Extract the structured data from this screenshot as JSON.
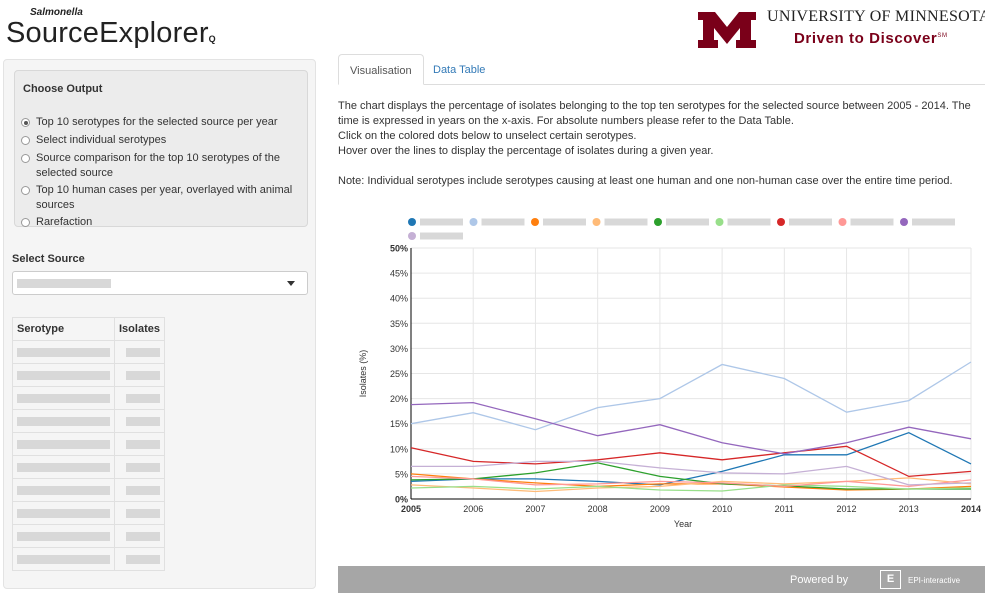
{
  "brand": {
    "small": "Salmonella",
    "big": "SourceExplorer",
    "suffix": "Q"
  },
  "university": {
    "name": "UNIVERSITY OF MINNESOTA",
    "tagline": "Driven to Discover",
    "tm": "SM",
    "logo_color": "#7a0019"
  },
  "sidebar": {
    "output_title": "Choose Output",
    "options": [
      {
        "label": "Top 10 serotypes for the selected source per year",
        "selected": true
      },
      {
        "label": "Select individual serotypes",
        "selected": false
      },
      {
        "label": "Source comparison for the top 10 serotypes of the selected source",
        "selected": false
      },
      {
        "label": "Top 10 human cases per year, overlayed with animal sources",
        "selected": false
      },
      {
        "label": "Rarefaction",
        "selected": false
      }
    ],
    "source_label": "Select Source",
    "table": {
      "headers": [
        "Serotype",
        "Isolates"
      ],
      "row_count": 10
    }
  },
  "tabs": [
    {
      "label": "Visualisation",
      "active": true
    },
    {
      "label": "Data Table",
      "active": false
    }
  ],
  "description": {
    "p1": "The chart displays the percentage of isolates belonging to the top ten serotypes for the selected source between 2005 - 2014. The time is expressed in years on the x-axis. For absolute numbers please refer to the Data Table.",
    "p2": "Click on the colored dots below to unselect certain serotypes.",
    "p3": "Hover over the lines to display the percentage of isolates during a given year.",
    "note": "Note: Individual serotypes include serotypes causing at least one human and one non-human case over the entire time period."
  },
  "chart_data": {
    "type": "line",
    "xlabel": "Year",
    "ylabel": "Isolates (%)",
    "ylim": [
      0,
      50
    ],
    "y_ticks": [
      "0%",
      "5%",
      "10%",
      "15%",
      "20%",
      "25%",
      "30%",
      "35%",
      "40%",
      "45%",
      "50%"
    ],
    "x": [
      "2005",
      "2006",
      "2007",
      "2008",
      "2009",
      "2010",
      "2011",
      "2012",
      "2013",
      "2014"
    ],
    "grid": true,
    "legend_position": "top",
    "series": [
      {
        "color": "#1f77b4",
        "values": [
          3.5,
          4.0,
          4.0,
          3.5,
          2.8,
          5.5,
          8.8,
          8.8,
          13.2,
          7.0
        ]
      },
      {
        "color": "#aec7e8",
        "values": [
          15.0,
          17.2,
          13.8,
          18.2,
          20.0,
          26.8,
          24.0,
          17.3,
          19.6,
          27.3
        ]
      },
      {
        "color": "#ff7f0e",
        "values": [
          5.0,
          4.0,
          3.2,
          2.5,
          3.0,
          3.0,
          2.4,
          1.8,
          2.0,
          2.5
        ]
      },
      {
        "color": "#ffbb78",
        "values": [
          2.8,
          2.2,
          1.5,
          2.2,
          2.5,
          3.5,
          3.0,
          3.5,
          4.2,
          3.0
        ]
      },
      {
        "color": "#2ca02c",
        "values": [
          3.8,
          4.0,
          5.2,
          7.2,
          4.5,
          3.0,
          2.6,
          2.0,
          2.0,
          2.0
        ]
      },
      {
        "color": "#98df8a",
        "values": [
          2.2,
          2.5,
          2.0,
          2.5,
          1.8,
          1.6,
          2.8,
          2.5,
          2.0,
          2.2
        ]
      },
      {
        "color": "#d62728",
        "values": [
          10.2,
          7.5,
          7.0,
          7.8,
          9.2,
          7.8,
          9.2,
          10.5,
          4.5,
          5.5
        ]
      },
      {
        "color": "#ff9896",
        "values": [
          4.5,
          4.0,
          2.8,
          3.0,
          3.5,
          3.2,
          2.5,
          3.5,
          2.5,
          3.8
        ]
      },
      {
        "color": "#9467bd",
        "values": [
          18.8,
          19.2,
          16.0,
          12.6,
          14.8,
          11.2,
          9.0,
          11.2,
          14.3,
          12.0
        ]
      },
      {
        "color": "#c5b0d5",
        "values": [
          6.5,
          6.5,
          7.5,
          7.5,
          6.2,
          5.2,
          5.0,
          6.5,
          2.8,
          3.2
        ]
      }
    ]
  },
  "footer": {
    "powered_by": "Powered by",
    "logo_letter": "E",
    "logo_text": "EPI-interactive"
  }
}
